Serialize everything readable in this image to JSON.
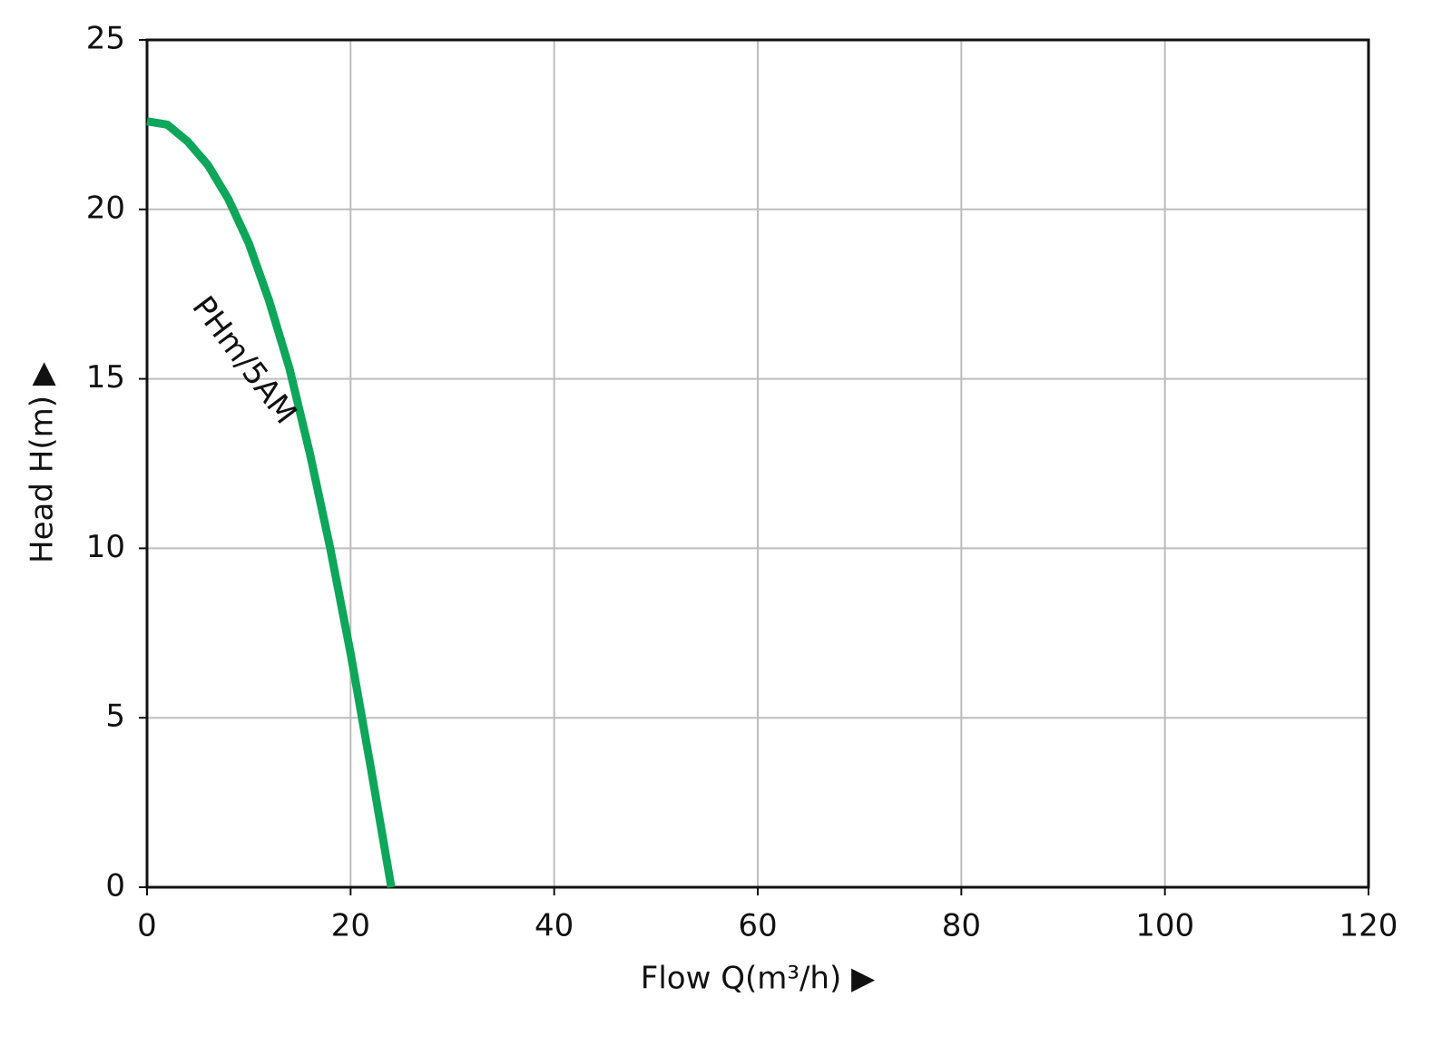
{
  "chart_data": {
    "type": "line",
    "x_label": "Flow Q(m³/h) ▶",
    "y_label": "Head H(m) ▶",
    "x": [
      0,
      2,
      4,
      6,
      8,
      10,
      12,
      14,
      16,
      18,
      20,
      22,
      24
    ],
    "series": [
      {
        "name": "PHm/5AM",
        "color": "#0ea65a",
        "values": [
          22.6,
          22.5,
          22.0,
          21.3,
          20.3,
          19.0,
          17.3,
          15.3,
          12.8,
          10.0,
          6.9,
          3.5,
          0
        ]
      }
    ],
    "xlim": [
      0,
      120
    ],
    "xticks": [
      0,
      20,
      40,
      60,
      80,
      100,
      120
    ],
    "ylim": [
      0,
      25
    ],
    "yticks": [
      0,
      5,
      10,
      15,
      20,
      25
    ],
    "grid": true
  }
}
